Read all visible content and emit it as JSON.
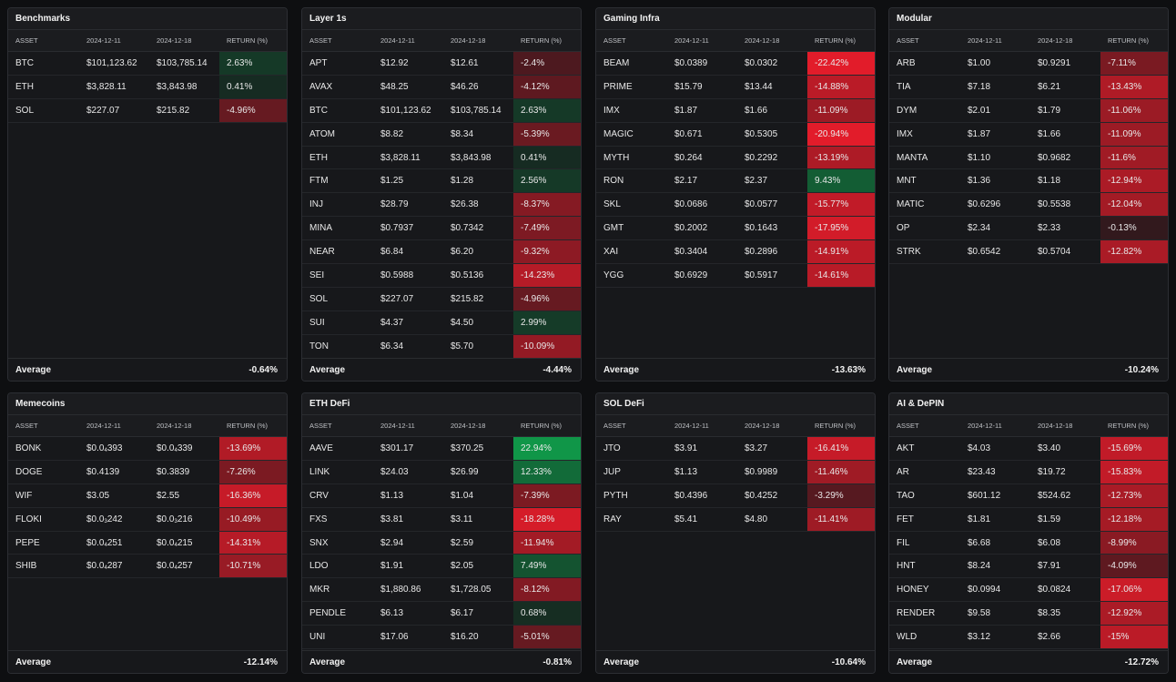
{
  "header_labels": {
    "asset": "ASSET",
    "d1": "2024-12-11",
    "d2": "2024-12-18",
    "ret": "RETURN (%)"
  },
  "avg_label": "Average",
  "panels": [
    {
      "id": "benchmarks",
      "title": "Benchmarks",
      "average": "-0.64%",
      "rows": [
        {
          "asset": "BTC",
          "d1": "$101,123.62",
          "d2": "$103,785.14",
          "ret": "2.63%",
          "v": 2.63
        },
        {
          "asset": "ETH",
          "d1": "$3,828.11",
          "d2": "$3,843.98",
          "ret": "0.41%",
          "v": 0.41
        },
        {
          "asset": "SOL",
          "d1": "$227.07",
          "d2": "$215.82",
          "ret": "-4.96%",
          "v": -4.96
        }
      ]
    },
    {
      "id": "layer1s",
      "title": "Layer 1s",
      "average": "-4.44%",
      "rows": [
        {
          "asset": "APT",
          "d1": "$12.92",
          "d2": "$12.61",
          "ret": "-2.4%",
          "v": -2.4
        },
        {
          "asset": "AVAX",
          "d1": "$48.25",
          "d2": "$46.26",
          "ret": "-4.12%",
          "v": -4.12
        },
        {
          "asset": "BTC",
          "d1": "$101,123.62",
          "d2": "$103,785.14",
          "ret": "2.63%",
          "v": 2.63
        },
        {
          "asset": "ATOM",
          "d1": "$8.82",
          "d2": "$8.34",
          "ret": "-5.39%",
          "v": -5.39
        },
        {
          "asset": "ETH",
          "d1": "$3,828.11",
          "d2": "$3,843.98",
          "ret": "0.41%",
          "v": 0.41
        },
        {
          "asset": "FTM",
          "d1": "$1.25",
          "d2": "$1.28",
          "ret": "2.56%",
          "v": 2.56
        },
        {
          "asset": "INJ",
          "d1": "$28.79",
          "d2": "$26.38",
          "ret": "-8.37%",
          "v": -8.37
        },
        {
          "asset": "MINA",
          "d1": "$0.7937",
          "d2": "$0.7342",
          "ret": "-7.49%",
          "v": -7.49
        },
        {
          "asset": "NEAR",
          "d1": "$6.84",
          "d2": "$6.20",
          "ret": "-9.32%",
          "v": -9.32
        },
        {
          "asset": "SEI",
          "d1": "$0.5988",
          "d2": "$0.5136",
          "ret": "-14.23%",
          "v": -14.23
        },
        {
          "asset": "SOL",
          "d1": "$227.07",
          "d2": "$215.82",
          "ret": "-4.96%",
          "v": -4.96
        },
        {
          "asset": "SUI",
          "d1": "$4.37",
          "d2": "$4.50",
          "ret": "2.99%",
          "v": 2.99
        },
        {
          "asset": "TON",
          "d1": "$6.34",
          "d2": "$5.70",
          "ret": "-10.09%",
          "v": -10.09
        }
      ]
    },
    {
      "id": "gaming",
      "title": "Gaming Infra",
      "average": "-13.63%",
      "rows": [
        {
          "asset": "BEAM",
          "d1": "$0.0389",
          "d2": "$0.0302",
          "ret": "-22.42%",
          "v": -22.42
        },
        {
          "asset": "PRIME",
          "d1": "$15.79",
          "d2": "$13.44",
          "ret": "-14.88%",
          "v": -14.88
        },
        {
          "asset": "IMX",
          "d1": "$1.87",
          "d2": "$1.66",
          "ret": "-11.09%",
          "v": -11.09
        },
        {
          "asset": "MAGIC",
          "d1": "$0.671",
          "d2": "$0.5305",
          "ret": "-20.94%",
          "v": -20.94
        },
        {
          "asset": "MYTH",
          "d1": "$0.264",
          "d2": "$0.2292",
          "ret": "-13.19%",
          "v": -13.19
        },
        {
          "asset": "RON",
          "d1": "$2.17",
          "d2": "$2.37",
          "ret": "9.43%",
          "v": 9.43
        },
        {
          "asset": "SKL",
          "d1": "$0.0686",
          "d2": "$0.0577",
          "ret": "-15.77%",
          "v": -15.77
        },
        {
          "asset": "GMT",
          "d1": "$0.2002",
          "d2": "$0.1643",
          "ret": "-17.95%",
          "v": -17.95
        },
        {
          "asset": "XAI",
          "d1": "$0.3404",
          "d2": "$0.2896",
          "ret": "-14.91%",
          "v": -14.91
        },
        {
          "asset": "YGG",
          "d1": "$0.6929",
          "d2": "$0.5917",
          "ret": "-14.61%",
          "v": -14.61
        }
      ]
    },
    {
      "id": "modular",
      "title": "Modular",
      "average": "-10.24%",
      "rows": [
        {
          "asset": "ARB",
          "d1": "$1.00",
          "d2": "$0.9291",
          "ret": "-7.11%",
          "v": -7.11
        },
        {
          "asset": "TIA",
          "d1": "$7.18",
          "d2": "$6.21",
          "ret": "-13.43%",
          "v": -13.43
        },
        {
          "asset": "DYM",
          "d1": "$2.01",
          "d2": "$1.79",
          "ret": "-11.06%",
          "v": -11.06
        },
        {
          "asset": "IMX",
          "d1": "$1.87",
          "d2": "$1.66",
          "ret": "-11.09%",
          "v": -11.09
        },
        {
          "asset": "MANTA",
          "d1": "$1.10",
          "d2": "$0.9682",
          "ret": "-11.6%",
          "v": -11.6
        },
        {
          "asset": "MNT",
          "d1": "$1.36",
          "d2": "$1.18",
          "ret": "-12.94%",
          "v": -12.94
        },
        {
          "asset": "MATIC",
          "d1": "$0.6296",
          "d2": "$0.5538",
          "ret": "-12.04%",
          "v": -12.04
        },
        {
          "asset": "OP",
          "d1": "$2.34",
          "d2": "$2.33",
          "ret": "-0.13%",
          "v": -0.13
        },
        {
          "asset": "STRK",
          "d1": "$0.6542",
          "d2": "$0.5704",
          "ret": "-12.82%",
          "v": -12.82
        }
      ]
    },
    {
      "id": "memecoins",
      "title": "Memecoins",
      "average": "-12.14%",
      "rows": [
        {
          "asset": "BONK",
          "d1": [
            "$0.0",
            "4",
            "393"
          ],
          "d2": [
            "$0.0",
            "4",
            "339"
          ],
          "ret": "-13.69%",
          "v": -13.69
        },
        {
          "asset": "DOGE",
          "d1": "$0.4139",
          "d2": "$0.3839",
          "ret": "-7.26%",
          "v": -7.26
        },
        {
          "asset": "WIF",
          "d1": "$3.05",
          "d2": "$2.55",
          "ret": "-16.36%",
          "v": -16.36
        },
        {
          "asset": "FLOKI",
          "d1": [
            "$0.0",
            "3",
            "242"
          ],
          "d2": [
            "$0.0",
            "3",
            "216"
          ],
          "ret": "-10.49%",
          "v": -10.49
        },
        {
          "asset": "PEPE",
          "d1": [
            "$0.0",
            "4",
            "251"
          ],
          "d2": [
            "$0.0",
            "4",
            "215"
          ],
          "ret": "-14.31%",
          "v": -14.31
        },
        {
          "asset": "SHIB",
          "d1": [
            "$0.0",
            "4",
            "287"
          ],
          "d2": [
            "$0.0",
            "4",
            "257"
          ],
          "ret": "-10.71%",
          "v": -10.71
        }
      ]
    },
    {
      "id": "ethdefi",
      "title": "ETH DeFi",
      "average": "-0.81%",
      "rows": [
        {
          "asset": "AAVE",
          "d1": "$301.17",
          "d2": "$370.25",
          "ret": "22.94%",
          "v": 22.94
        },
        {
          "asset": "LINK",
          "d1": "$24.03",
          "d2": "$26.99",
          "ret": "12.33%",
          "v": 12.33
        },
        {
          "asset": "CRV",
          "d1": "$1.13",
          "d2": "$1.04",
          "ret": "-7.39%",
          "v": -7.39
        },
        {
          "asset": "FXS",
          "d1": "$3.81",
          "d2": "$3.11",
          "ret": "-18.28%",
          "v": -18.28
        },
        {
          "asset": "SNX",
          "d1": "$2.94",
          "d2": "$2.59",
          "ret": "-11.94%",
          "v": -11.94
        },
        {
          "asset": "LDO",
          "d1": "$1.91",
          "d2": "$2.05",
          "ret": "7.49%",
          "v": 7.49
        },
        {
          "asset": "MKR",
          "d1": "$1,880.86",
          "d2": "$1,728.05",
          "ret": "-8.12%",
          "v": -8.12
        },
        {
          "asset": "PENDLE",
          "d1": "$6.13",
          "d2": "$6.17",
          "ret": "0.68%",
          "v": 0.68
        },
        {
          "asset": "UNI",
          "d1": "$17.06",
          "d2": "$16.20",
          "ret": "-5.01%",
          "v": -5.01
        }
      ]
    },
    {
      "id": "soldefi",
      "title": "SOL DeFi",
      "average": "-10.64%",
      "rows": [
        {
          "asset": "JTO",
          "d1": "$3.91",
          "d2": "$3.27",
          "ret": "-16.41%",
          "v": -16.41
        },
        {
          "asset": "JUP",
          "d1": "$1.13",
          "d2": "$0.9989",
          "ret": "-11.46%",
          "v": -11.46
        },
        {
          "asset": "PYTH",
          "d1": "$0.4396",
          "d2": "$0.4252",
          "ret": "-3.29%",
          "v": -3.29
        },
        {
          "asset": "RAY",
          "d1": "$5.41",
          "d2": "$4.80",
          "ret": "-11.41%",
          "v": -11.41
        }
      ]
    },
    {
      "id": "aidepin",
      "title": "AI & DePIN",
      "average": "-12.72%",
      "rows": [
        {
          "asset": "AKT",
          "d1": "$4.03",
          "d2": "$3.40",
          "ret": "-15.69%",
          "v": -15.69
        },
        {
          "asset": "AR",
          "d1": "$23.43",
          "d2": "$19.72",
          "ret": "-15.83%",
          "v": -15.83
        },
        {
          "asset": "TAO",
          "d1": "$601.12",
          "d2": "$524.62",
          "ret": "-12.73%",
          "v": -12.73
        },
        {
          "asset": "FET",
          "d1": "$1.81",
          "d2": "$1.59",
          "ret": "-12.18%",
          "v": -12.18
        },
        {
          "asset": "FIL",
          "d1": "$6.68",
          "d2": "$6.08",
          "ret": "-8.99%",
          "v": -8.99
        },
        {
          "asset": "HNT",
          "d1": "$8.24",
          "d2": "$7.91",
          "ret": "-4.09%",
          "v": -4.09
        },
        {
          "asset": "HONEY",
          "d1": "$0.0994",
          "d2": "$0.0824",
          "ret": "-17.06%",
          "v": -17.06
        },
        {
          "asset": "RENDER",
          "d1": "$9.58",
          "d2": "$8.35",
          "ret": "-12.92%",
          "v": -12.92
        },
        {
          "asset": "WLD",
          "d1": "$3.12",
          "d2": "$2.66",
          "ret": "-15%",
          "v": -15
        }
      ]
    }
  ],
  "colors": {
    "negative": "#e11d2a",
    "positive": "#0e8f47"
  }
}
